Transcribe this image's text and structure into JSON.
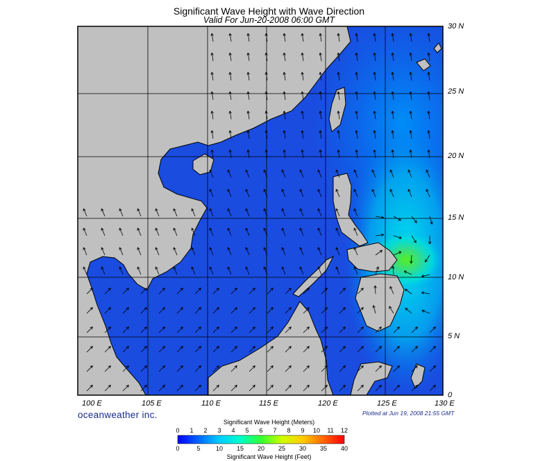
{
  "header": {
    "title": "Significant Wave Height with Wave Direction",
    "subtitle": "Valid For Jun-20-2008 06:00 GMT"
  },
  "map": {
    "lon_range": [
      99,
      130
    ],
    "lat_range": [
      0,
      30
    ],
    "lon_labels": [
      "100 E",
      "105 E",
      "110 E",
      "115 E",
      "120 E",
      "125 E",
      "130 E"
    ],
    "lat_labels": [
      "0",
      "5 N",
      "10 N",
      "15 N",
      "20 N",
      "25 N",
      "30 N"
    ],
    "grid": true,
    "land_color": "#c0c0c0",
    "water_base_color": "#1a4ce0",
    "wave_arrow_color": "#000000"
  },
  "footer": {
    "brand": "oceanweather inc.",
    "plotted": "Plotted at Jun 19, 2008 21:55 GMT"
  },
  "colorbar": {
    "meters_title": "Significant Wave Height (Meters)",
    "feet_title": "Significant Wave Height (Feet)",
    "meters_ticks": [
      "0",
      "1",
      "2",
      "3",
      "4",
      "5",
      "6",
      "7",
      "8",
      "9",
      "10",
      "11",
      "12"
    ],
    "feet_ticks": [
      "0",
      "5",
      "10",
      "15",
      "20",
      "25",
      "30",
      "35",
      "40"
    ],
    "colors": [
      "#0000ff",
      "#0066ff",
      "#00ccff",
      "#00ffcc",
      "#33ff33",
      "#ccff00",
      "#ffcc00",
      "#ff6600",
      "#ff0000"
    ]
  }
}
